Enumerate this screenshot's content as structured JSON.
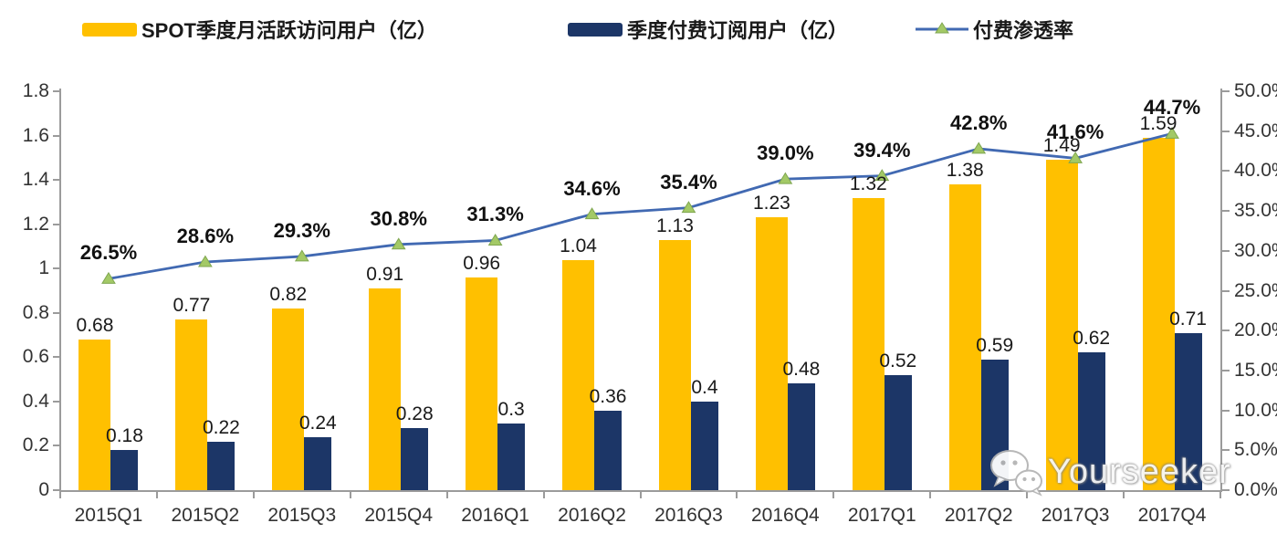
{
  "chart_data": {
    "type": "bar",
    "subtype": "grouped-bars-with-line-overlay",
    "title": "",
    "categories": [
      "2015Q1",
      "2015Q2",
      "2015Q3",
      "2015Q4",
      "2016Q1",
      "2016Q2",
      "2016Q3",
      "2016Q4",
      "2017Q1",
      "2017Q2",
      "2017Q3",
      "2017Q4"
    ],
    "series": [
      {
        "name": "SPOT季度月活跃访问用户（亿）",
        "type": "bar",
        "axis": "left",
        "color": "#FFC000",
        "values": [
          0.68,
          0.77,
          0.82,
          0.91,
          0.96,
          1.04,
          1.13,
          1.23,
          1.32,
          1.38,
          1.49,
          1.59
        ],
        "labels": [
          "0.68",
          "0.77",
          "0.82",
          "0.91",
          "0.96",
          "1.04",
          "1.13",
          "1.23",
          "1.32",
          "1.38",
          "1.49",
          "1.59"
        ]
      },
      {
        "name": "季度付费订阅用户（亿）",
        "type": "bar",
        "axis": "left",
        "color": "#1C3667",
        "values": [
          0.18,
          0.22,
          0.24,
          0.28,
          0.3,
          0.36,
          0.4,
          0.48,
          0.52,
          0.59,
          0.62,
          0.71
        ],
        "labels": [
          "0.18",
          "0.22",
          "0.24",
          "0.28",
          "0.3",
          "0.36",
          "0.4",
          "0.48",
          "0.52",
          "0.59",
          "0.62",
          "0.71"
        ]
      },
      {
        "name": "付费渗透率",
        "type": "line",
        "axis": "right",
        "color": "#4169B2",
        "marker": "triangle",
        "marker_fill": "#A3C966",
        "marker_stroke": "#7FA650",
        "values": [
          26.5,
          28.6,
          29.3,
          30.8,
          31.3,
          34.6,
          35.4,
          39.0,
          39.4,
          42.8,
          41.6,
          44.7
        ],
        "labels": [
          "26.5%",
          "28.6%",
          "29.3%",
          "30.8%",
          "31.3%",
          "34.6%",
          "35.4%",
          "39.0%",
          "39.4%",
          "42.8%",
          "41.6%",
          "44.7%"
        ]
      }
    ],
    "left_axis": {
      "min": 0,
      "max": 1.8,
      "step": 0.2,
      "ticks": [
        "0",
        "0.2",
        "0.4",
        "0.6",
        "0.8",
        "1",
        "1.2",
        "1.4",
        "1.6",
        "1.8"
      ]
    },
    "right_axis": {
      "min": 0,
      "max": 50,
      "step": 5,
      "ticks": [
        "0.0%",
        "5.0%",
        "10.0%",
        "15.0%",
        "20.0%",
        "25.0%",
        "30.0%",
        "35.0%",
        "40.0%",
        "45.0%",
        "50.0%"
      ]
    },
    "grid": false,
    "legend_position": "top"
  },
  "watermark": {
    "text": "Yourseeker",
    "icon": "wechat-icon"
  }
}
